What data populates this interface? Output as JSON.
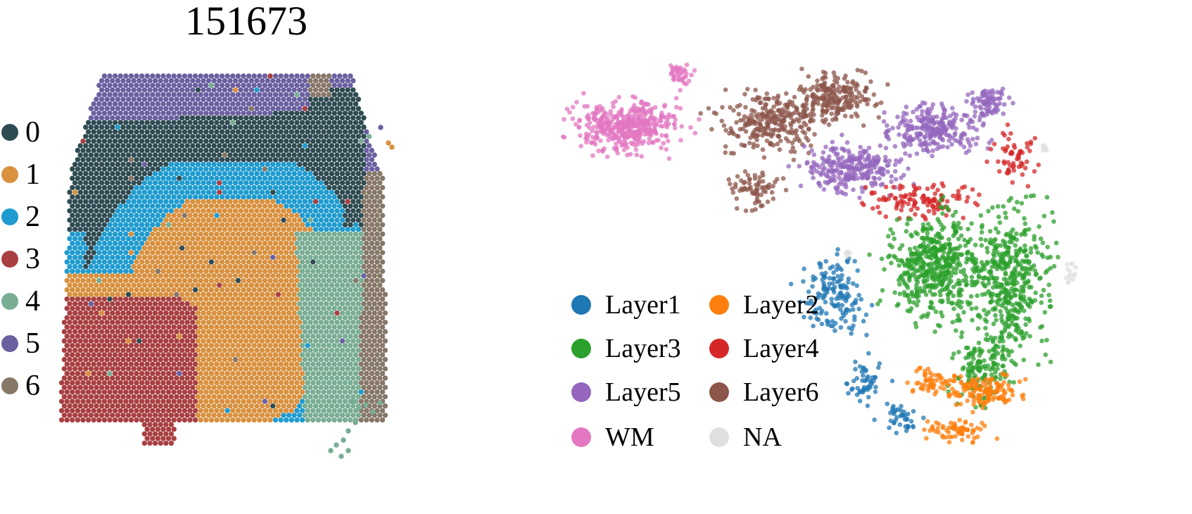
{
  "chart_data": [
    {
      "type": "scatter",
      "title": "151673",
      "legend": {
        "placement": "left",
        "entries": [
          {
            "label": "0",
            "color": "#2f4b52"
          },
          {
            "label": "1",
            "color": "#d9913f"
          },
          {
            "label": "2",
            "color": "#1f9bcf"
          },
          {
            "label": "3",
            "color": "#a83f42"
          },
          {
            "label": "4",
            "color": "#79ad93"
          },
          {
            "label": "5",
            "color": "#6a60a0"
          },
          {
            "label": "6",
            "color": "#867767"
          }
        ]
      },
      "axes": "off",
      "grid": false
    },
    {
      "type": "scatter",
      "title": "",
      "legend": {
        "placement": "center",
        "entries": [
          {
            "label": "Layer1",
            "color": "#1f77b4"
          },
          {
            "label": "Layer2",
            "color": "#ff7f0e"
          },
          {
            "label": "Layer3",
            "color": "#2ca02c"
          },
          {
            "label": "Layer4",
            "color": "#d62728"
          },
          {
            "label": "Layer5",
            "color": "#9467bd"
          },
          {
            "label": "Layer6",
            "color": "#8c564b"
          },
          {
            "label": "WM",
            "color": "#e377c2"
          },
          {
            "label": "NA",
            "color": "#e0e0e0"
          }
        ]
      },
      "axes": "off",
      "grid": false
    }
  ]
}
